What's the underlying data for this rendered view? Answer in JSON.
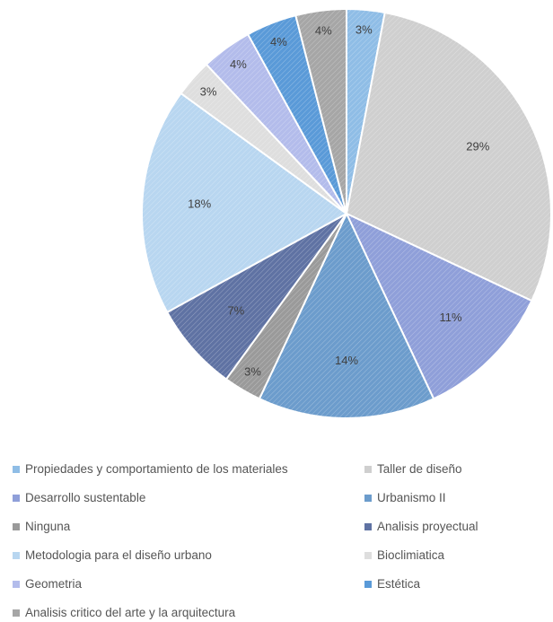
{
  "chart_data": {
    "type": "pie",
    "title": "",
    "categories": [
      "Propiedades y comportamiento de los materiales",
      "Taller de diseño",
      "Desarrollo sustentable",
      "Urbanismo II",
      "Ninguna",
      "Analisis proyectual",
      "Metodologia para el diseño urbano",
      "Bioclimiatica",
      "Geometria",
      "Estética",
      "Analisis critico del arte y la arquitectura"
    ],
    "values": [
      3,
      29,
      11,
      14,
      3,
      7,
      18,
      3,
      4,
      4,
      4
    ],
    "labels": [
      "3%",
      "29%",
      "11%",
      "14%",
      "3%",
      "7%",
      "18%",
      "3%",
      "4%",
      "4%",
      "4%"
    ],
    "colors": [
      "#8fbde6",
      "#cfcfcf",
      "#8f9fd9",
      "#6c9ccc",
      "#9a9a9a",
      "#5f72a3",
      "#b8d6f0",
      "#dedede",
      "#b3bceb",
      "#5a9ad8",
      "#a6a6a6"
    ],
    "legend_position": "bottom"
  }
}
